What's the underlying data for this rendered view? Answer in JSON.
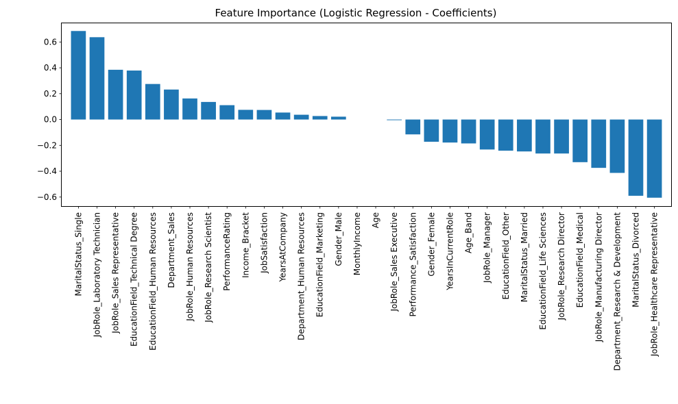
{
  "chart_data": {
    "type": "bar",
    "title": "Feature Importance (Logistic Regression - Coefficients)",
    "xlabel": "",
    "ylabel": "",
    "ylim": [
      -0.67,
      0.75
    ],
    "yticks": [
      0.6,
      0.4,
      0.2,
      0.0,
      -0.2,
      -0.4,
      -0.6
    ],
    "ytick_labels": [
      "0.6",
      "0.4",
      "0.2",
      "0.0",
      "−0.2",
      "−0.4",
      "−0.6"
    ],
    "grid": false,
    "bar_color": "#1f77b4",
    "categories": [
      "MaritalStatus_Single",
      "JobRole_Laboratory Technician",
      "JobRole_Sales Representative",
      "EducationField_Technical Degree",
      "EducationField_Human Resources",
      "Department_Sales",
      "JobRole_Human Resources",
      "JobRole_Research Scientist",
      "PerformanceRating",
      "Income_Bracket",
      "JobSatisfaction",
      "YearsAtCompany",
      "Department_Human Resources",
      "EducationField_Marketing",
      "Gender_Male",
      "MonthlyIncome",
      "Age",
      "JobRole_Sales Executive",
      "Performance_Satisfaction",
      "Gender_Female",
      "YearsInCurrentRole",
      "Age_Band",
      "JobRole_Manager",
      "EducationField_Other",
      "MaritalStatus_Married",
      "EducationField_Life Sciences",
      "JobRole_Research Director",
      "EducationField_Medical",
      "JobRole_Manufacturing Director",
      "Department_Research & Development",
      "MaritalStatus_Divorced",
      "JobRole_Healthcare Representative"
    ],
    "values": [
      0.685,
      0.637,
      0.385,
      0.379,
      0.275,
      0.232,
      0.163,
      0.136,
      0.111,
      0.075,
      0.074,
      0.054,
      0.037,
      0.027,
      0.022,
      0.0,
      0.0,
      -0.005,
      -0.115,
      -0.172,
      -0.178,
      -0.185,
      -0.232,
      -0.241,
      -0.247,
      -0.263,
      -0.263,
      -0.33,
      -0.374,
      -0.413,
      -0.59,
      -0.605
    ]
  }
}
